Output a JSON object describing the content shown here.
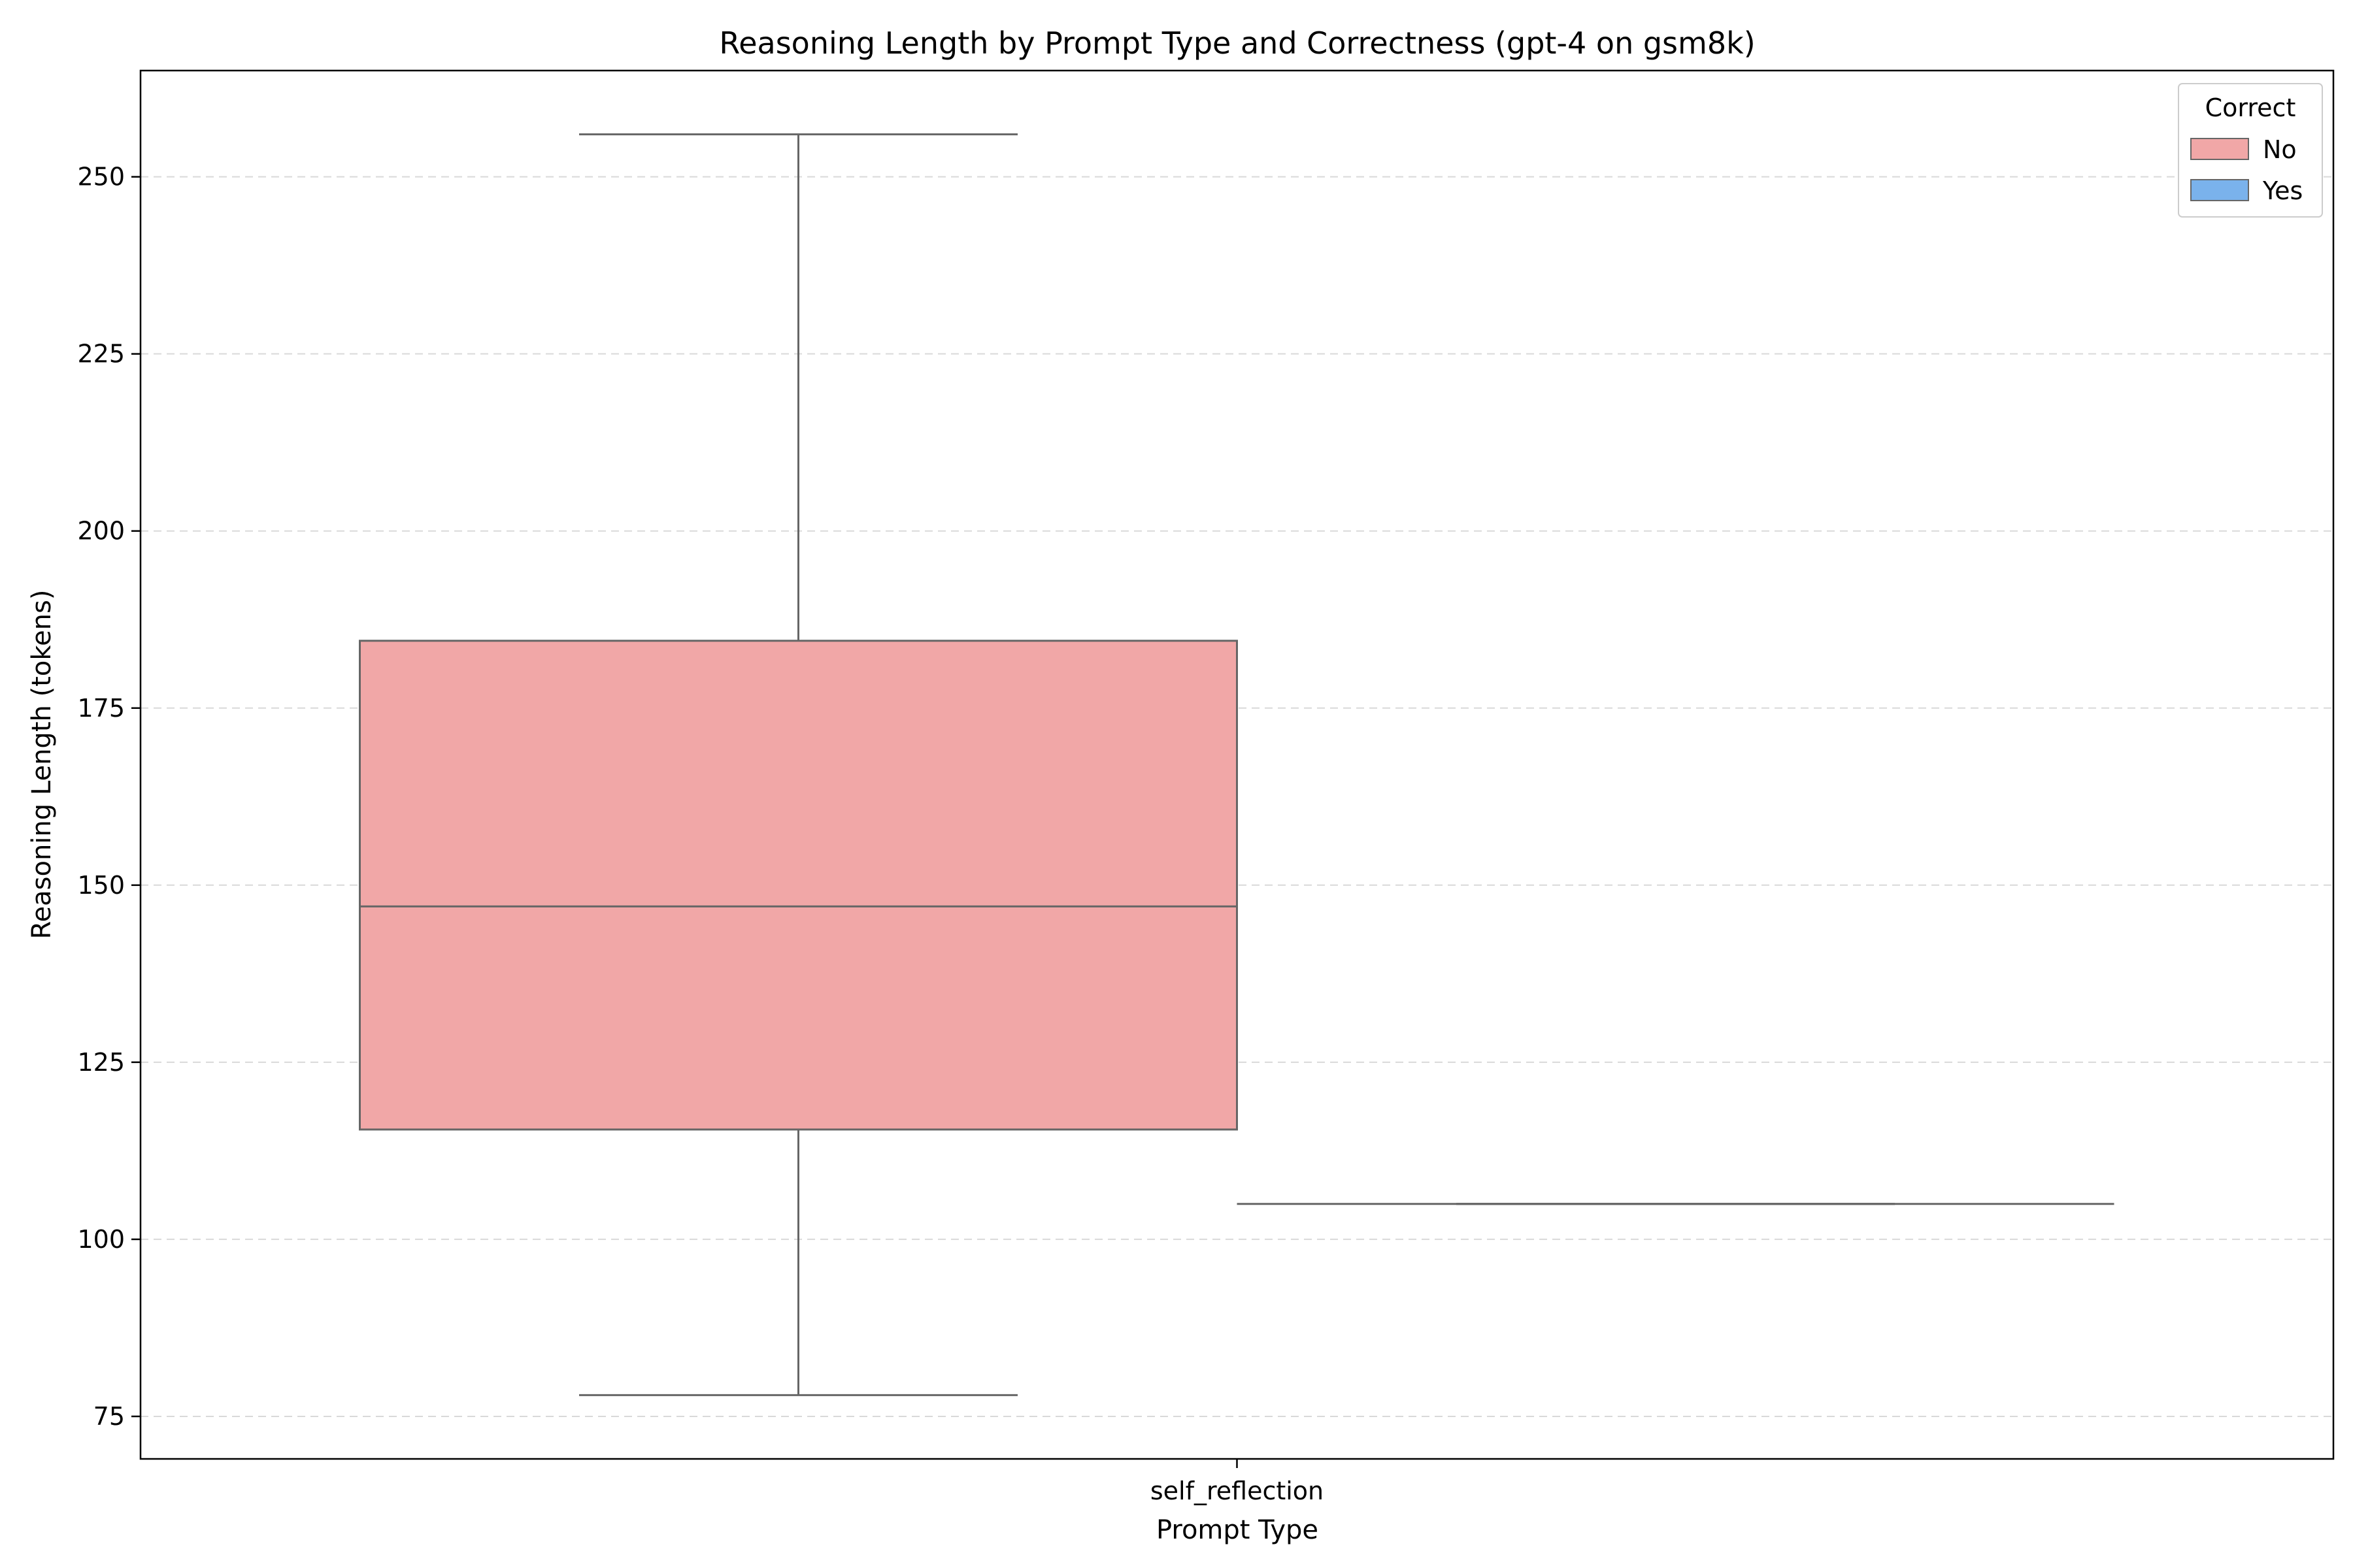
{
  "chart_data": {
    "type": "box",
    "title": "Reasoning Length by Prompt Type and Correctness (gpt-4 on gsm8k)",
    "xlabel": "Prompt Type",
    "ylabel": "Reasoning Length (tokens)",
    "categories": [
      "self_reflection"
    ],
    "ylim": [
      69,
      265
    ],
    "yticks": [
      75,
      100,
      125,
      150,
      175,
      200,
      225,
      250
    ],
    "grid": "y-dashed",
    "legend": {
      "title": "Correct",
      "placement": "top-right",
      "entries": [
        {
          "label": "No",
          "color": "#f1a7a7"
        },
        {
          "label": "Yes",
          "color": "#7ab2ec"
        }
      ]
    },
    "series": [
      {
        "name": "No",
        "color": "#f1a7a7",
        "boxes": [
          {
            "category": "self_reflection",
            "whisker_low": 78,
            "q1": 115.5,
            "median": 147,
            "q3": 184.5,
            "whisker_high": 256
          }
        ]
      },
      {
        "name": "Yes",
        "color": "#7ab2ec",
        "boxes": [
          {
            "category": "self_reflection",
            "whisker_low": 105,
            "q1": 105,
            "median": 105,
            "q3": 105,
            "whisker_high": 105
          }
        ]
      }
    ],
    "colors": {
      "box_edge": "#666666",
      "grid": "#d9d9d9",
      "axes": "#000000"
    }
  }
}
